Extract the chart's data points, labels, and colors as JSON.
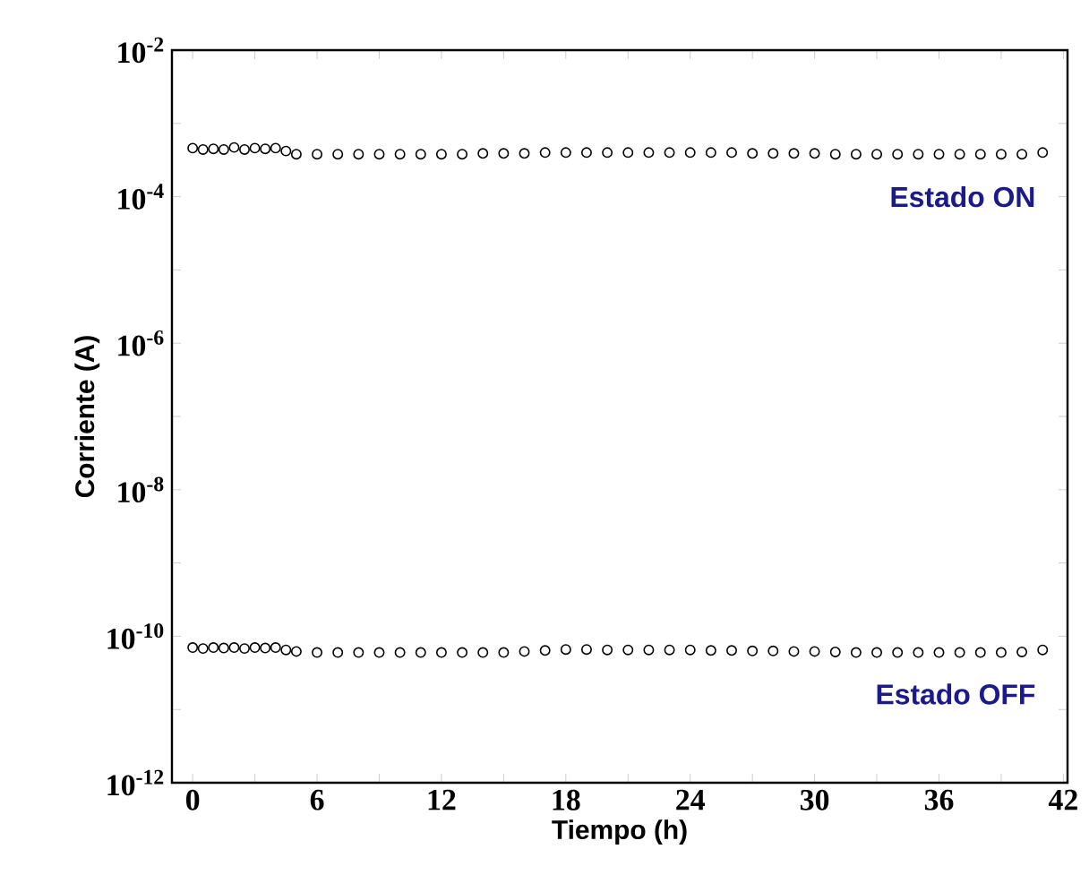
{
  "chart_data": {
    "type": "scatter",
    "xlabel": "Tiempo (h)",
    "ylabel": "Corriente (A)",
    "log": "y",
    "marker": "circle",
    "legend": false,
    "grid": false,
    "xlim": [
      -1,
      42.2
    ],
    "ylim": [
      1e-12,
      0.01
    ],
    "xticks": [
      0,
      {
        "value": 3,
        "label": null
      },
      6,
      {
        "value": 9,
        "label": null
      },
      12,
      {
        "value": 15,
        "label": null
      },
      18,
      {
        "value": 21,
        "label": null
      },
      24,
      {
        "value": 27,
        "label": null
      },
      30,
      {
        "value": 33,
        "label": null
      },
      36,
      {
        "value": 39,
        "label": null
      },
      42
    ],
    "yticks": [
      {
        "value": 1e-12,
        "label": "10$^{-12}$"
      },
      {
        "value": 1e-11,
        "label": null
      },
      {
        "value": 1e-10,
        "label": "10$^{-10}$"
      },
      {
        "value": 1e-09,
        "label": null
      },
      {
        "value": 1e-08,
        "label": "10$^{-8}$"
      },
      {
        "value": 1e-07,
        "label": null
      },
      {
        "value": 1e-06,
        "label": "10$^{-6}$"
      },
      {
        "value": 1e-05,
        "label": null
      },
      {
        "value": 0.0001,
        "label": "10$^{-4}$"
      },
      {
        "value": 0.001,
        "label": null
      },
      {
        "value": 0.01,
        "label": "10$^{-2}$"
      }
    ],
    "x": [
      0,
      0.5,
      1,
      1.5,
      2,
      2.5,
      3,
      3.5,
      4,
      4.5,
      5,
      6,
      7,
      8,
      9,
      10,
      11,
      12,
      13,
      14,
      15,
      16,
      17,
      18,
      19,
      20,
      21,
      22,
      23,
      24,
      25,
      26,
      27,
      28,
      29,
      30,
      31,
      32,
      33,
      34,
      35,
      36,
      37,
      38,
      39,
      40,
      41
    ],
    "series": [
      {
        "name": "Estado ON",
        "color": "#000000",
        "values": [
          0.00046,
          0.00044,
          0.00045,
          0.00044,
          0.00047,
          0.00044,
          0.00046,
          0.00045,
          0.00046,
          0.00042,
          0.00038,
          0.00038,
          0.00038,
          0.00038,
          0.00038,
          0.00038,
          0.00038,
          0.00038,
          0.00038,
          0.00039,
          0.00039,
          0.00039,
          0.0004,
          0.0004,
          0.0004,
          0.0004,
          0.0004,
          0.0004,
          0.0004,
          0.0004,
          0.0004,
          0.0004,
          0.00039,
          0.00039,
          0.00039,
          0.00039,
          0.00038,
          0.00038,
          0.00038,
          0.00038,
          0.00038,
          0.00038,
          0.00038,
          0.00038,
          0.00038,
          0.00038,
          0.0004
        ]
      },
      {
        "name": "Estado OFF",
        "color": "#000000",
        "values": [
          7e-11,
          6.8e-11,
          7e-11,
          6.9e-11,
          7e-11,
          6.8e-11,
          7e-11,
          6.9e-11,
          7e-11,
          6.5e-11,
          6.2e-11,
          6e-11,
          6e-11,
          6e-11,
          6e-11,
          6e-11,
          6e-11,
          6e-11,
          6e-11,
          6e-11,
          6e-11,
          6.2e-11,
          6.4e-11,
          6.6e-11,
          6.6e-11,
          6.5e-11,
          6.5e-11,
          6.5e-11,
          6.5e-11,
          6.5e-11,
          6.4e-11,
          6.4e-11,
          6.3e-11,
          6.3e-11,
          6.2e-11,
          6.2e-11,
          6.1e-11,
          6e-11,
          6e-11,
          6e-11,
          6e-11,
          6e-11,
          6e-11,
          6e-11,
          6e-11,
          6.1e-11,
          6.5e-11
        ]
      }
    ]
  }
}
